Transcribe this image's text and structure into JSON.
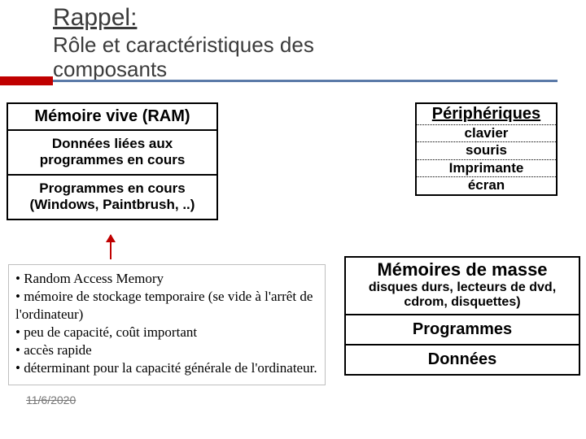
{
  "title": {
    "line1": "Rappel:",
    "line2": "Rôle et caractéristiques des composants"
  },
  "accent_bar_color": "#c00000",
  "rule_color": "#5b7aa8",
  "ram": {
    "header": "Mémoire vive (RAM)",
    "row1": "Données liées aux programmes en cours",
    "row2": "Programmes en cours (Windows, Paintbrush, ..)"
  },
  "peripherals": {
    "header": "Périphériques",
    "items": [
      "clavier",
      "souris",
      "Imprimante",
      "écran"
    ]
  },
  "notes": {
    "b1": "• Random Access Memory",
    "b2": "• mémoire de stockage temporaire (se vide à l'arrêt de l'ordinateur)",
    "b3": "• peu de capacité, coût important",
    "b4": "• accès rapide",
    "b5": "• déterminant pour la capacité générale de l'ordinateur."
  },
  "date_overlay": "11/6/2020",
  "mass": {
    "header": "Mémoires de masse",
    "sub": "disques durs, lecteurs de dvd, cdrom, disquettes)",
    "row1": "Programmes",
    "row2": "Données"
  }
}
